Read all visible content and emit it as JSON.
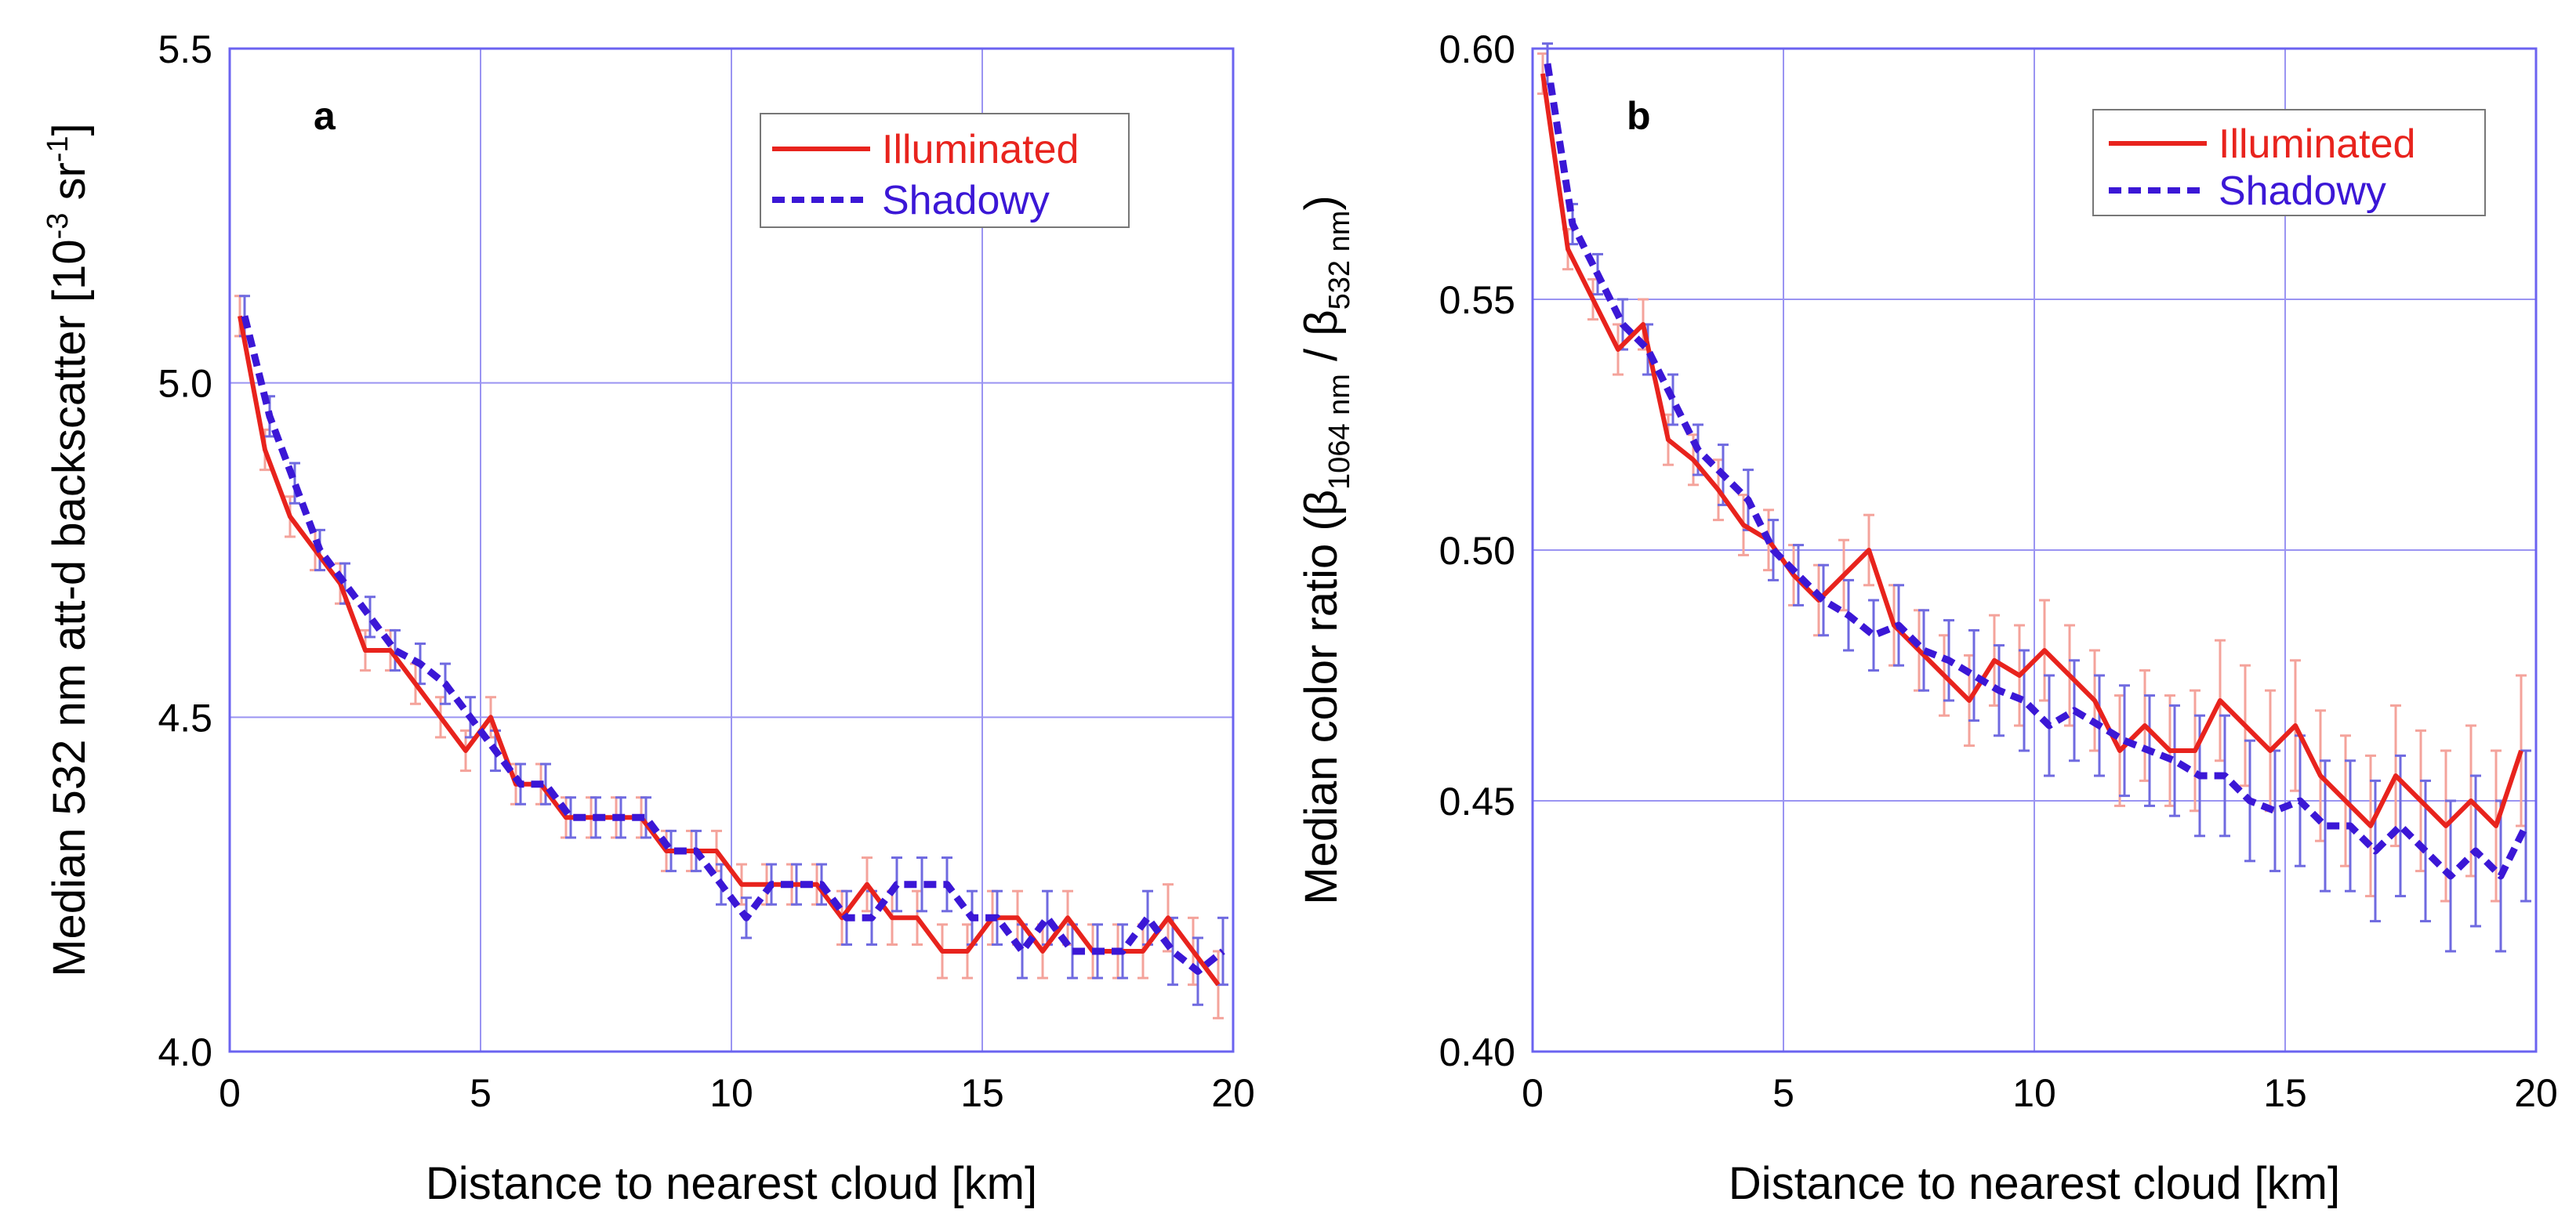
{
  "colors": {
    "illuminated": "#e8231d",
    "illuminated_error": "#f4a39b",
    "shadowy": "#3b17d6",
    "shadowy_error": "#6f6ae0",
    "frame": "#6b63f0",
    "grid": "#9a94f2"
  },
  "chart_data": [
    {
      "type": "line",
      "panel_label": "a",
      "title": "",
      "xlabel": "Distance to nearest cloud [km]",
      "ylabel_main": "Median 532 nm att-d backscatter [10",
      "ylabel_exp1": "-3",
      "ylabel_unit": " sr",
      "ylabel_exp2": "-1",
      "ylabel_close": "]",
      "xlim": [
        0,
        20
      ],
      "ylim": [
        4.0,
        5.5
      ],
      "xticks": [
        0,
        5,
        10,
        15,
        20
      ],
      "xtick_labels": [
        "0",
        "5",
        "10",
        "15",
        "20"
      ],
      "yticks": [
        4.0,
        4.5,
        5.0,
        5.5
      ],
      "ytick_labels": [
        "4.0",
        "4.5",
        "5.0",
        "5.5"
      ],
      "grid": true,
      "legend_position": "top-right",
      "x": [
        0.25,
        0.75,
        1.25,
        1.75,
        2.25,
        2.75,
        3.25,
        3.75,
        4.25,
        4.75,
        5.25,
        5.75,
        6.25,
        6.75,
        7.25,
        7.75,
        8.25,
        8.75,
        9.25,
        9.75,
        10.25,
        10.75,
        11.25,
        11.75,
        12.25,
        12.75,
        13.25,
        13.75,
        14.25,
        14.75,
        15.25,
        15.75,
        16.25,
        16.75,
        17.25,
        17.75,
        18.25,
        18.75,
        19.25,
        19.75
      ],
      "series": [
        {
          "name": "Illuminated",
          "style": "solid",
          "values": [
            5.1,
            4.9,
            4.8,
            4.75,
            4.7,
            4.6,
            4.6,
            4.55,
            4.5,
            4.45,
            4.5,
            4.4,
            4.4,
            4.35,
            4.35,
            4.35,
            4.35,
            4.3,
            4.3,
            4.3,
            4.25,
            4.25,
            4.25,
            4.25,
            4.2,
            4.25,
            4.2,
            4.2,
            4.15,
            4.15,
            4.2,
            4.2,
            4.15,
            4.2,
            4.15,
            4.15,
            4.15,
            4.2,
            4.15,
            4.1
          ],
          "errors": [
            0.03,
            0.03,
            0.03,
            0.03,
            0.03,
            0.03,
            0.03,
            0.03,
            0.03,
            0.03,
            0.03,
            0.03,
            0.03,
            0.03,
            0.03,
            0.03,
            0.03,
            0.03,
            0.03,
            0.03,
            0.03,
            0.03,
            0.03,
            0.03,
            0.04,
            0.04,
            0.04,
            0.04,
            0.04,
            0.04,
            0.04,
            0.04,
            0.04,
            0.04,
            0.04,
            0.04,
            0.04,
            0.05,
            0.05,
            0.05
          ]
        },
        {
          "name": "Shadowy",
          "style": "dashed",
          "values": [
            5.1,
            4.95,
            4.85,
            4.75,
            4.7,
            4.65,
            4.6,
            4.58,
            4.55,
            4.5,
            4.45,
            4.4,
            4.4,
            4.35,
            4.35,
            4.35,
            4.35,
            4.3,
            4.3,
            4.25,
            4.2,
            4.25,
            4.25,
            4.25,
            4.2,
            4.2,
            4.25,
            4.25,
            4.25,
            4.2,
            4.2,
            4.15,
            4.2,
            4.15,
            4.15,
            4.15,
            4.2,
            4.15,
            4.12,
            4.15
          ],
          "errors": [
            0.03,
            0.03,
            0.03,
            0.03,
            0.03,
            0.03,
            0.03,
            0.03,
            0.03,
            0.03,
            0.03,
            0.03,
            0.03,
            0.03,
            0.03,
            0.03,
            0.03,
            0.03,
            0.03,
            0.03,
            0.03,
            0.03,
            0.03,
            0.03,
            0.04,
            0.04,
            0.04,
            0.04,
            0.04,
            0.04,
            0.04,
            0.04,
            0.04,
            0.04,
            0.04,
            0.04,
            0.04,
            0.05,
            0.05,
            0.05
          ]
        }
      ]
    },
    {
      "type": "line",
      "panel_label": "b",
      "title": "",
      "xlabel": "Distance to nearest cloud [km]",
      "ylabel_main": "Median color ratio (β",
      "ylabel_sub1": "1064 nm",
      "ylabel_mid": " / β",
      "ylabel_sub2": "532 nm",
      "ylabel_close": ")",
      "xlim": [
        0,
        20
      ],
      "ylim": [
        0.4,
        0.6
      ],
      "xticks": [
        0,
        5,
        10,
        15,
        20
      ],
      "xtick_labels": [
        "0",
        "5",
        "10",
        "15",
        "20"
      ],
      "yticks": [
        0.4,
        0.45,
        0.5,
        0.55,
        0.6
      ],
      "ytick_labels": [
        "0.40",
        "0.45",
        "0.50",
        "0.55",
        "0.60"
      ],
      "grid": true,
      "legend_position": "top-right",
      "x": [
        0.25,
        0.75,
        1.25,
        1.75,
        2.25,
        2.75,
        3.25,
        3.75,
        4.25,
        4.75,
        5.25,
        5.75,
        6.25,
        6.75,
        7.25,
        7.75,
        8.25,
        8.75,
        9.25,
        9.75,
        10.25,
        10.75,
        11.25,
        11.75,
        12.25,
        12.75,
        13.25,
        13.75,
        14.25,
        14.75,
        15.25,
        15.75,
        16.25,
        16.75,
        17.25,
        17.75,
        18.25,
        18.75,
        19.25,
        19.75
      ],
      "series": [
        {
          "name": "Illuminated",
          "style": "solid",
          "values": [
            0.595,
            0.56,
            0.55,
            0.54,
            0.545,
            0.522,
            0.518,
            0.512,
            0.505,
            0.502,
            0.495,
            0.49,
            0.495,
            0.5,
            0.485,
            0.48,
            0.475,
            0.47,
            0.478,
            0.475,
            0.48,
            0.475,
            0.47,
            0.46,
            0.465,
            0.46,
            0.46,
            0.47,
            0.465,
            0.46,
            0.465,
            0.455,
            0.45,
            0.445,
            0.455,
            0.45,
            0.445,
            0.45,
            0.445,
            0.46
          ],
          "errors": [
            0.004,
            0.004,
            0.004,
            0.005,
            0.005,
            0.005,
            0.005,
            0.006,
            0.006,
            0.006,
            0.006,
            0.007,
            0.007,
            0.007,
            0.008,
            0.008,
            0.008,
            0.009,
            0.009,
            0.01,
            0.01,
            0.01,
            0.01,
            0.011,
            0.011,
            0.011,
            0.012,
            0.012,
            0.012,
            0.012,
            0.013,
            0.013,
            0.013,
            0.014,
            0.014,
            0.014,
            0.015,
            0.015,
            0.015,
            0.015
          ]
        },
        {
          "name": "Shadowy",
          "style": "dashed",
          "values": [
            0.597,
            0.565,
            0.555,
            0.545,
            0.54,
            0.53,
            0.52,
            0.515,
            0.51,
            0.5,
            0.495,
            0.49,
            0.487,
            0.483,
            0.485,
            0.48,
            0.478,
            0.475,
            0.472,
            0.47,
            0.465,
            0.468,
            0.465,
            0.462,
            0.46,
            0.458,
            0.455,
            0.455,
            0.45,
            0.448,
            0.45,
            0.445,
            0.445,
            0.44,
            0.445,
            0.44,
            0.435,
            0.44,
            0.435,
            0.445
          ],
          "errors": [
            0.004,
            0.004,
            0.004,
            0.005,
            0.005,
            0.005,
            0.005,
            0.006,
            0.006,
            0.006,
            0.006,
            0.007,
            0.007,
            0.007,
            0.008,
            0.008,
            0.008,
            0.009,
            0.009,
            0.01,
            0.01,
            0.01,
            0.01,
            0.011,
            0.011,
            0.011,
            0.012,
            0.012,
            0.012,
            0.012,
            0.013,
            0.013,
            0.013,
            0.014,
            0.014,
            0.014,
            0.015,
            0.015,
            0.015,
            0.015
          ]
        }
      ]
    }
  ]
}
